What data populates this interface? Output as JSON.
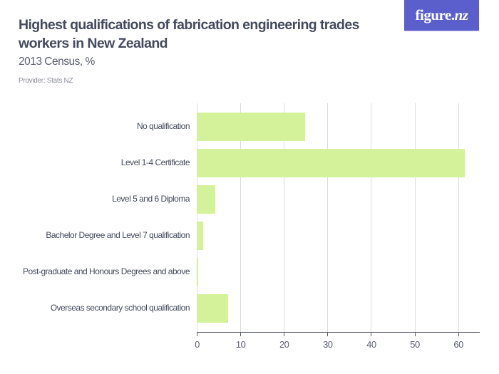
{
  "header": {
    "title": "Highest qualifications of fabrication engineering trades workers in New Zealand",
    "subtitle": "2013 Census, %",
    "provider": "Provider: Stats NZ"
  },
  "logo": {
    "text_main": "figure.",
    "text_italic": "nz",
    "bg_color": "#5b5fcc"
  },
  "colors": {
    "bar": "#d4f29a",
    "grid": "#dcdcdc",
    "axis": "#5a5e6b"
  },
  "chart_data": {
    "type": "bar",
    "orientation": "horizontal",
    "title": "Highest qualifications of fabrication engineering trades workers in New Zealand",
    "subtitle": "2013 Census, %",
    "xlabel": "",
    "ylabel": "",
    "xlim": [
      0,
      65
    ],
    "xticks": [
      0,
      10,
      20,
      30,
      40,
      50,
      60
    ],
    "grid": true,
    "legend": null,
    "categories": [
      "No qualification",
      "Level 1-4 Certificate",
      "Level 5 and 6 Diploma",
      "Bachelor Degree and Level 7 qualification",
      "Post-graduate and Honours Degrees and above",
      "Overseas secondary school qualification"
    ],
    "values": [
      24.9,
      61.6,
      4.3,
      1.5,
      0.4,
      7.2
    ]
  }
}
